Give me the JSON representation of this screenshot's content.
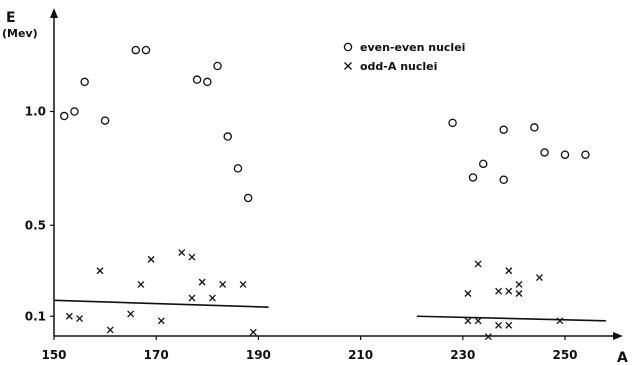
{
  "chart_data": {
    "type": "scatter",
    "ylabel": "E",
    "yunit": "(Mev)",
    "xlabel": "A",
    "x_ticks": [
      150,
      170,
      190,
      210,
      230,
      250
    ],
    "y_ticks": [
      {
        "value": 0.1,
        "label": "0.1"
      },
      {
        "value": 0.5,
        "label": "0.5"
      },
      {
        "value": 1.0,
        "label": "1.0"
      }
    ],
    "xlim": [
      150,
      260
    ],
    "ylim": [
      0,
      1.4
    ],
    "legend_position": "top-right",
    "series": [
      {
        "name": "even-even nuclei",
        "marker": "circle",
        "points": [
          {
            "x": 152,
            "y": 0.98
          },
          {
            "x": 154,
            "y": 1.0
          },
          {
            "x": 156,
            "y": 1.13
          },
          {
            "x": 160,
            "y": 0.96
          },
          {
            "x": 166,
            "y": 1.27
          },
          {
            "x": 168,
            "y": 1.27
          },
          {
            "x": 178,
            "y": 1.14
          },
          {
            "x": 180,
            "y": 1.13
          },
          {
            "x": 182,
            "y": 1.2
          },
          {
            "x": 184,
            "y": 0.89
          },
          {
            "x": 186,
            "y": 0.75
          },
          {
            "x": 188,
            "y": 0.62
          },
          {
            "x": 228,
            "y": 0.95
          },
          {
            "x": 232,
            "y": 0.71
          },
          {
            "x": 234,
            "y": 0.77
          },
          {
            "x": 238,
            "y": 0.92
          },
          {
            "x": 238,
            "y": 0.7
          },
          {
            "x": 244,
            "y": 0.93
          },
          {
            "x": 246,
            "y": 0.82
          },
          {
            "x": 250,
            "y": 0.81
          },
          {
            "x": 254,
            "y": 0.81
          }
        ]
      },
      {
        "name": "odd-A nuclei",
        "marker": "x",
        "points": [
          {
            "x": 153,
            "y": 0.1
          },
          {
            "x": 155,
            "y": 0.09
          },
          {
            "x": 159,
            "y": 0.3
          },
          {
            "x": 161,
            "y": 0.04
          },
          {
            "x": 165,
            "y": 0.11
          },
          {
            "x": 167,
            "y": 0.24
          },
          {
            "x": 169,
            "y": 0.35
          },
          {
            "x": 171,
            "y": 0.08
          },
          {
            "x": 175,
            "y": 0.38
          },
          {
            "x": 177,
            "y": 0.18
          },
          {
            "x": 177,
            "y": 0.36
          },
          {
            "x": 179,
            "y": 0.25
          },
          {
            "x": 181,
            "y": 0.18
          },
          {
            "x": 183,
            "y": 0.24
          },
          {
            "x": 187,
            "y": 0.24
          },
          {
            "x": 189,
            "y": 0.03
          },
          {
            "x": 231,
            "y": 0.2
          },
          {
            "x": 231,
            "y": 0.08
          },
          {
            "x": 233,
            "y": 0.33
          },
          {
            "x": 233,
            "y": 0.08
          },
          {
            "x": 235,
            "y": 0.01
          },
          {
            "x": 237,
            "y": 0.21
          },
          {
            "x": 237,
            "y": 0.06
          },
          {
            "x": 239,
            "y": 0.3
          },
          {
            "x": 239,
            "y": 0.21
          },
          {
            "x": 239,
            "y": 0.06
          },
          {
            "x": 241,
            "y": 0.2
          },
          {
            "x": 241,
            "y": 0.24
          },
          {
            "x": 245,
            "y": 0.27
          },
          {
            "x": 249,
            "y": 0.08
          }
        ]
      }
    ],
    "lines": [
      {
        "points": [
          {
            "x": 150,
            "y": 0.17
          },
          {
            "x": 192,
            "y": 0.14
          }
        ]
      },
      {
        "points": [
          {
            "x": 221,
            "y": 0.1
          },
          {
            "x": 258,
            "y": 0.08
          }
        ]
      }
    ]
  }
}
